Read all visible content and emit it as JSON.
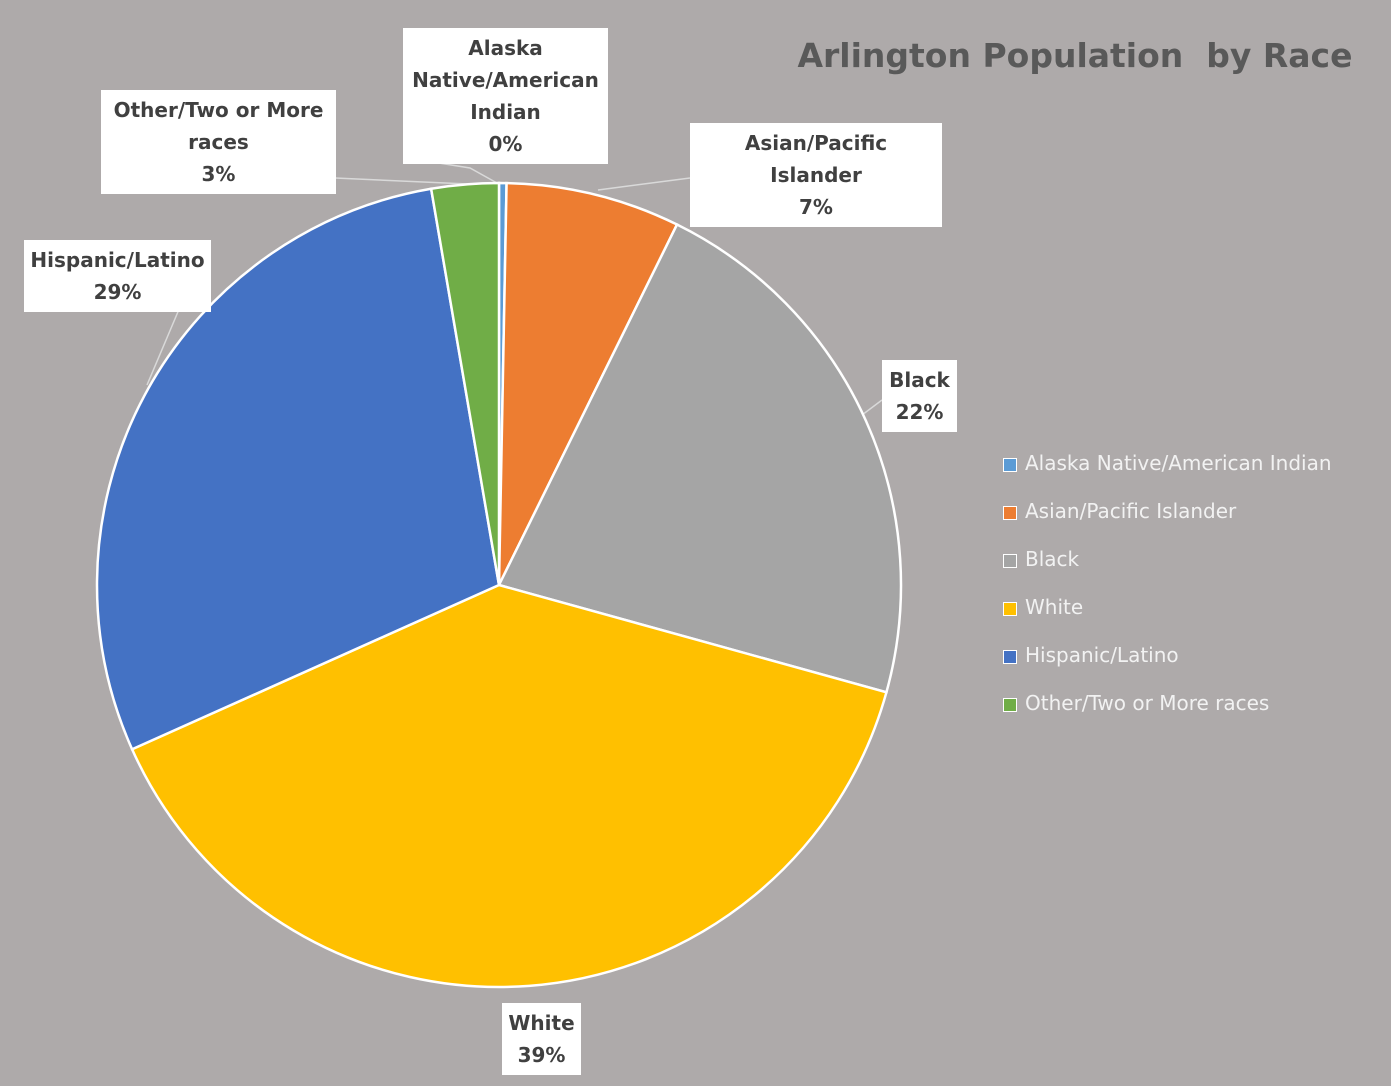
{
  "chart_data": {
    "type": "pie",
    "title": "Arlington Population  by Race",
    "categories": [
      "Alaska Native/American Indian",
      "Asian/Pacific Islander",
      "Black",
      "White",
      "Hispanic/Latino",
      "Other/Two or More races"
    ],
    "values": [
      0.3,
      7,
      22,
      39,
      29,
      2.7
    ],
    "value_labels": [
      "0%",
      "7%",
      "22%",
      "39%",
      "29%",
      "3%"
    ],
    "colors": [
      "#5b9bd5",
      "#ed7d31",
      "#a5a5a5",
      "#ffc000",
      "#4472c4",
      "#70ad47"
    ],
    "legend": "right"
  }
}
